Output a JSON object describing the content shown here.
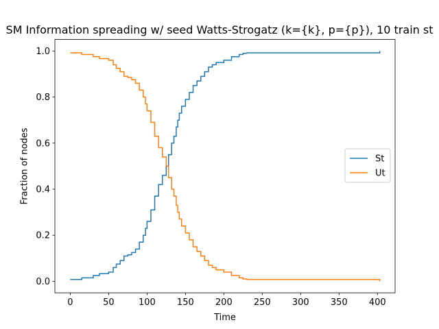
{
  "chart_data": {
    "type": "line",
    "title": "SM Information spreading w/ seed Watts-Strogatz (k={k}, p={p}), 10 train st",
    "xlabel": "Time",
    "ylabel": "Fraction of nodes",
    "xlim": [
      -20,
      423
    ],
    "ylim": [
      -0.05,
      1.05
    ],
    "xticks": [
      0,
      50,
      100,
      150,
      200,
      250,
      300,
      350,
      400
    ],
    "yticks": [
      0.0,
      0.2,
      0.4,
      0.6,
      0.8,
      1.0
    ],
    "ytick_labels": [
      "0.0",
      "0.2",
      "0.4",
      "0.6",
      "0.8",
      "1.0"
    ],
    "legend_placement": "center-right",
    "grid": false,
    "series": [
      {
        "name": "St",
        "color": "#1f77b4",
        "x": [
          0,
          15,
          30,
          38,
          50,
          56,
          60,
          65,
          70,
          75,
          80,
          85,
          90,
          95,
          98,
          100,
          105,
          110,
          115,
          120,
          125,
          128,
          132,
          135,
          138,
          140,
          142,
          145,
          150,
          155,
          160,
          165,
          170,
          175,
          180,
          185,
          190,
          200,
          210,
          220,
          225,
          230,
          250,
          300,
          350,
          400,
          403
        ],
        "values": [
          0.008,
          0.015,
          0.025,
          0.033,
          0.04,
          0.06,
          0.075,
          0.09,
          0.11,
          0.115,
          0.125,
          0.14,
          0.17,
          0.2,
          0.23,
          0.26,
          0.31,
          0.37,
          0.42,
          0.46,
          0.5,
          0.55,
          0.6,
          0.63,
          0.67,
          0.7,
          0.73,
          0.76,
          0.79,
          0.82,
          0.85,
          0.87,
          0.89,
          0.91,
          0.93,
          0.94,
          0.95,
          0.96,
          0.975,
          0.985,
          0.99,
          0.992,
          0.992,
          0.992,
          0.992,
          0.992,
          1.0
        ]
      },
      {
        "name": "Ut",
        "color": "#ff7f0e",
        "x": [
          0,
          15,
          30,
          38,
          50,
          56,
          60,
          65,
          70,
          75,
          80,
          85,
          90,
          95,
          98,
          100,
          105,
          110,
          115,
          120,
          125,
          128,
          132,
          135,
          138,
          140,
          142,
          145,
          150,
          155,
          160,
          165,
          170,
          175,
          180,
          185,
          190,
          200,
          210,
          220,
          225,
          230,
          250,
          300,
          350,
          400,
          403
        ],
        "values": [
          0.992,
          0.985,
          0.975,
          0.967,
          0.96,
          0.94,
          0.925,
          0.91,
          0.89,
          0.885,
          0.875,
          0.86,
          0.83,
          0.8,
          0.77,
          0.74,
          0.69,
          0.63,
          0.58,
          0.54,
          0.5,
          0.45,
          0.4,
          0.37,
          0.33,
          0.3,
          0.27,
          0.24,
          0.21,
          0.18,
          0.15,
          0.13,
          0.11,
          0.09,
          0.07,
          0.06,
          0.05,
          0.04,
          0.025,
          0.015,
          0.01,
          0.008,
          0.008,
          0.008,
          0.008,
          0.008,
          0.0
        ]
      }
    ]
  }
}
